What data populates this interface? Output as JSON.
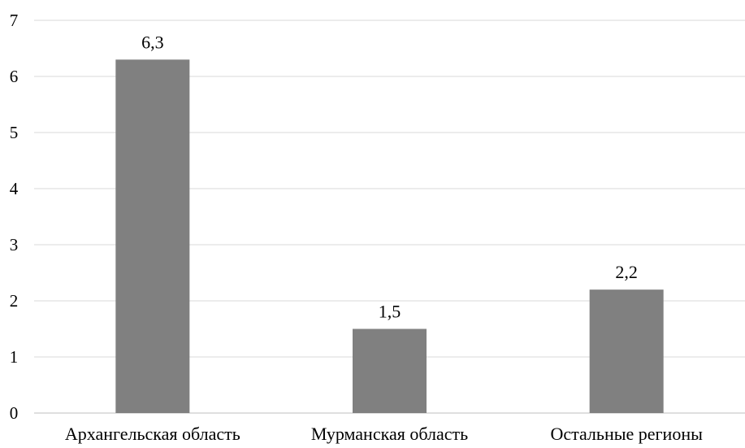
{
  "chart_data": {
    "type": "bar",
    "categories": [
      "Архангельская область",
      "Мурманская область",
      "Остальные регионы"
    ],
    "values": [
      6.3,
      1.5,
      2.2
    ],
    "data_labels": [
      "6,3",
      "1,5",
      "2,2"
    ],
    "title": "",
    "xlabel": "",
    "ylabel": "",
    "ylim": [
      0,
      7
    ],
    "yticks": [
      0,
      1,
      2,
      3,
      4,
      5,
      6,
      7
    ],
    "ytick_labels": [
      "0",
      "1",
      "2",
      "3",
      "4",
      "5",
      "6",
      "7"
    ],
    "grid": true,
    "legend": "none",
    "colors": {
      "bar": "#808080",
      "grid": "#d9d9d9",
      "axis": "#bfbfbf",
      "text": "#000000"
    }
  }
}
